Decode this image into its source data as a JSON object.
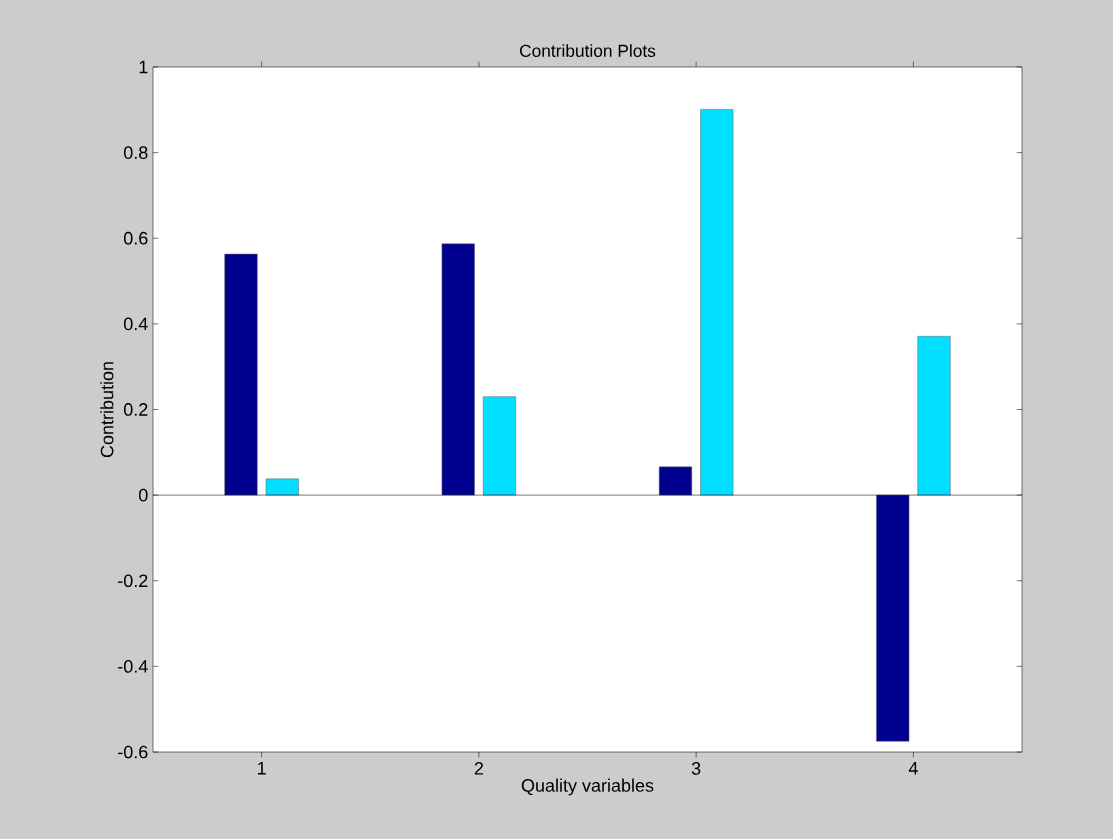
{
  "chart_data": {
    "type": "bar",
    "title": "Contribution Plots",
    "xlabel": "Quality variables",
    "ylabel": "Contribution",
    "categories": [
      "1",
      "2",
      "3",
      "4"
    ],
    "series": [
      {
        "color": "#00008f",
        "values": [
          0.563,
          0.587,
          0.066,
          -0.575
        ]
      },
      {
        "color": "#00dfff",
        "values": [
          0.038,
          0.23,
          0.901,
          0.371
        ]
      }
    ],
    "ylim": [
      -0.6,
      1
    ],
    "yticks": [
      -0.6,
      -0.4,
      -0.2,
      0,
      0.2,
      0.4,
      0.6,
      0.8,
      1
    ]
  }
}
